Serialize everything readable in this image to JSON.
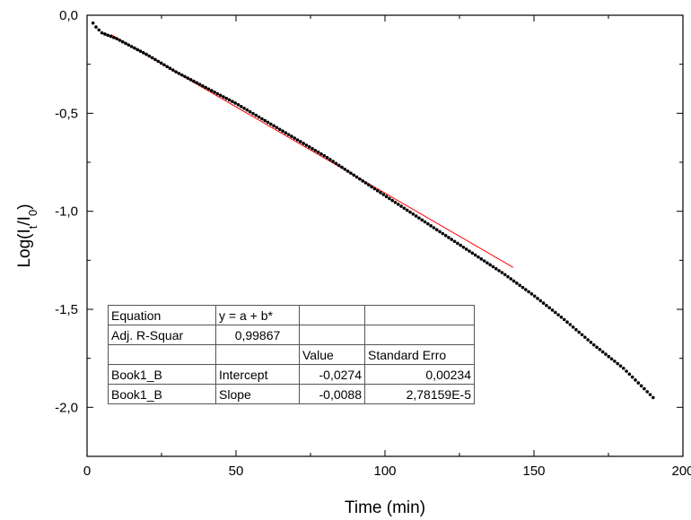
{
  "chart_data": {
    "type": "scatter",
    "title": "",
    "xlabel": "Time (min)",
    "ylabel_parts": [
      "Log(I",
      "t",
      "/I",
      "0",
      ")"
    ],
    "xlim": [
      0,
      200
    ],
    "ylim": [
      -2.25,
      0.0
    ],
    "x_ticks": [
      0,
      50,
      100,
      150,
      200
    ],
    "x_tick_labels": [
      "0",
      "50",
      "100",
      "150",
      "200"
    ],
    "y_ticks": [
      0.0,
      -0.5,
      -1.0,
      -1.5,
      -2.0
    ],
    "y_tick_labels": [
      "0,0",
      "-0,5",
      "-1,0",
      "-1,5",
      "-2,0"
    ],
    "grid": false,
    "legend": "none",
    "series": [
      {
        "type": "scatter",
        "color": "#000000",
        "curve": {
          "x": [
            2,
            3,
            5,
            10,
            20,
            30,
            40,
            50,
            60,
            70,
            80,
            90,
            100,
            110,
            120,
            130,
            140,
            150,
            160,
            170,
            180,
            190
          ],
          "y": [
            -0.04,
            -0.06,
            -0.09,
            -0.12,
            -0.2,
            -0.29,
            -0.37,
            -0.45,
            -0.54,
            -0.63,
            -0.72,
            -0.82,
            -0.92,
            -1.02,
            -1.12,
            -1.22,
            -1.32,
            -1.43,
            -1.55,
            -1.68,
            -1.8,
            -1.95
          ]
        },
        "x_start": 2,
        "x_end": 190,
        "point_count": 190
      },
      {
        "type": "line",
        "color": "#ff0000",
        "intercept": -0.0274,
        "slope": -0.0088,
        "x_range": [
          8,
          143
        ]
      }
    ]
  },
  "fit_table": {
    "rows": [
      [
        "Equation",
        "y = a + b*",
        "",
        ""
      ],
      [
        "Adj. R-Squar",
        "0,99867",
        "",
        ""
      ],
      [
        "",
        "",
        "Value",
        "Standard Erro"
      ],
      [
        "Book1_B",
        "Intercept",
        "-0,0274",
        "0,00234"
      ],
      [
        "Book1_B",
        "Slope",
        "-0,0088",
        "2,78159E-5"
      ]
    ]
  }
}
